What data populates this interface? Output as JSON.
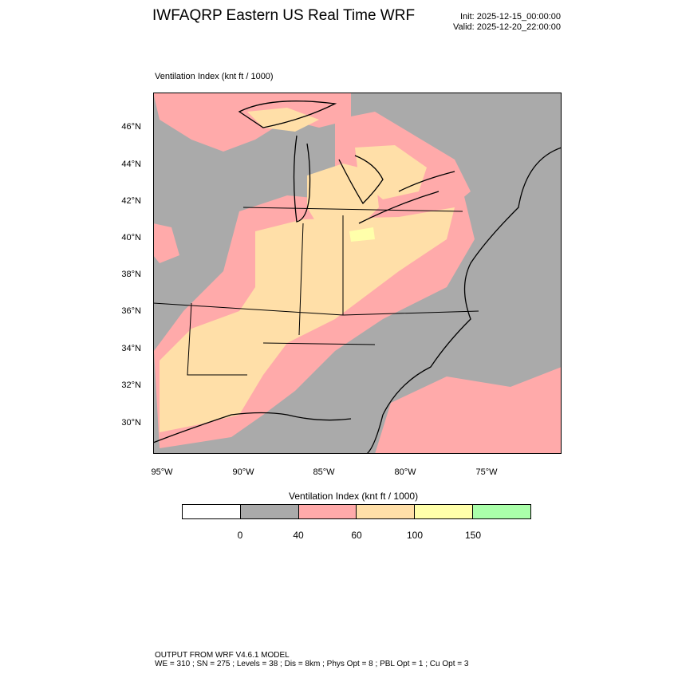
{
  "header": {
    "title": "IWFAQRP Eastern US Real Time WRF",
    "init": "Init: 2025-12-15_00:00:00",
    "valid": "Valid: 2025-12-20_22:00:00"
  },
  "plot": {
    "subtitle": "Ventilation Index   (knt ft / 1000)",
    "lat_labels": [
      "46°N",
      "44°N",
      "42°N",
      "40°N",
      "38°N",
      "36°N",
      "34°N",
      "32°N",
      "30°N"
    ],
    "lon_labels": [
      "95°W",
      "90°W",
      "85°W",
      "80°W",
      "75°W"
    ]
  },
  "colorbar": {
    "title": "Ventilation Index  (knt ft / 1000)",
    "colors": [
      "#ffffff",
      "#aaaaaa",
      "#ffaaaa",
      "#ffdfa8",
      "#ffffaa",
      "#aaffaa"
    ],
    "labels": [
      "0",
      "40",
      "60",
      "100",
      "150"
    ]
  },
  "footer": {
    "line1": "OUTPUT FROM WRF V4.6.1 MODEL",
    "line2": "WE = 310 ; SN = 275 ; Levels = 38 ; Dis = 8km ; Phys Opt = 8 ; PBL Opt = 1 ; Cu Opt = 3"
  }
}
